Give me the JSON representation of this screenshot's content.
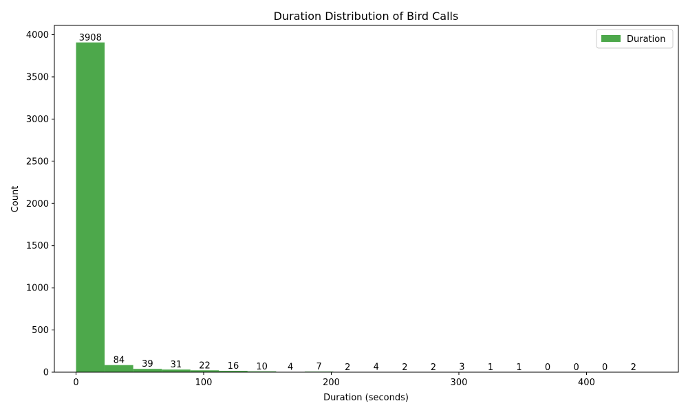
{
  "chart_data": {
    "type": "bar",
    "title": "Duration Distribution of Bird Calls",
    "xlabel": "Duration (seconds)",
    "ylabel": "Count",
    "bin_edges": [
      0,
      22.4,
      44.8,
      67.2,
      89.6,
      112,
      134.4,
      156.8,
      179.2,
      201.6,
      224,
      246.4,
      268.8,
      291.2,
      313.6,
      336,
      358.4,
      380.8,
      403.2,
      425.6,
      448
    ],
    "values": [
      3908,
      84,
      39,
      31,
      22,
      16,
      10,
      4,
      7,
      2,
      4,
      2,
      2,
      3,
      1,
      1,
      0,
      0,
      0,
      2
    ],
    "series": [
      {
        "name": "Duration",
        "values": [
          3908,
          84,
          39,
          31,
          22,
          16,
          10,
          4,
          7,
          2,
          4,
          2,
          2,
          3,
          1,
          1,
          0,
          0,
          0,
          2
        ]
      }
    ],
    "xlim": [
      -17,
      472
    ],
    "ylim": [
      0,
      4110
    ],
    "xticks": [
      0,
      100,
      200,
      300,
      400
    ],
    "yticks": [
      0,
      500,
      1000,
      1500,
      2000,
      2500,
      3000,
      3500,
      4000
    ],
    "legend": {
      "position": "top-right"
    },
    "grid": false,
    "colors": {
      "bar": "#4da84b"
    }
  }
}
